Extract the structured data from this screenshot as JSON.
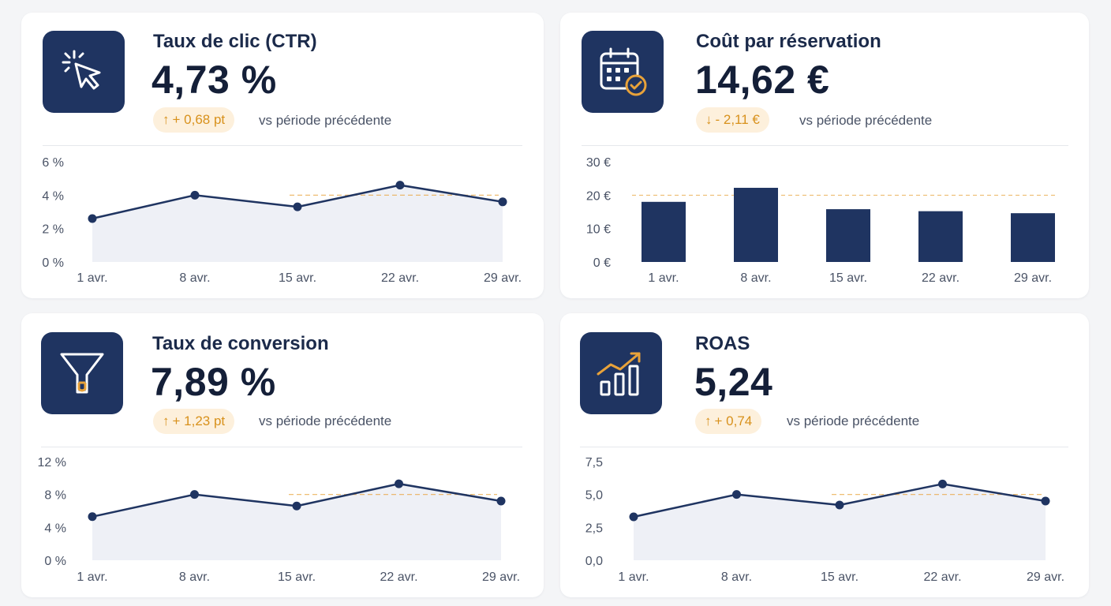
{
  "colors": {
    "navy": "#1f3461",
    "accent": "#e8a23a",
    "badge_bg": "#fdf0dc",
    "area_fill": "#eef0f6"
  },
  "cards": [
    {
      "icon": "cursor-click-icon",
      "title": "Taux de clic (CTR)",
      "value": "4,73 %",
      "delta_arrow": "↑",
      "delta": "+ 0,68 pt",
      "vs": "vs période précédente"
    },
    {
      "icon": "calendar-check-icon",
      "title": "Coût par réservation",
      "value": "14,62 €",
      "delta_arrow": "↓",
      "delta": "- 2,11 €",
      "vs": "vs période précédente"
    },
    {
      "icon": "funnel-icon",
      "title": "Taux de conversion",
      "value": "7,89 %",
      "delta_arrow": "↑",
      "delta": "+ 1,23 pt",
      "vs": "vs période précédente"
    },
    {
      "icon": "trend-bar-chart-icon",
      "title": "ROAS",
      "value": "5,24",
      "delta_arrow": "↑",
      "delta": "+ 0,74",
      "vs": "vs période précédente"
    }
  ],
  "chart_data": [
    {
      "type": "line",
      "categories": [
        "1 avr.",
        "8 avr.",
        "15 avr.",
        "22 avr.",
        "29 avr."
      ],
      "values": [
        2.6,
        4.0,
        3.3,
        4.6,
        3.6
      ],
      "ylim": [
        0,
        6
      ],
      "yticks": [
        "0 %",
        "2 %",
        "4 %",
        "6 %"
      ],
      "ytick_values": [
        0,
        2,
        4,
        6
      ],
      "reference_line": 4.0,
      "area": true,
      "grid": false
    },
    {
      "type": "bar",
      "categories": [
        "1 avr.",
        "8 avr.",
        "15 avr.",
        "22 avr.",
        "29 avr."
      ],
      "values": [
        18,
        22.2,
        15.8,
        15.2,
        14.6
      ],
      "ylim": [
        0,
        30
      ],
      "yticks": [
        "0 €",
        "10 €",
        "20 €",
        "30 €"
      ],
      "ytick_values": [
        0,
        10,
        20,
        30
      ],
      "reference_line": 20,
      "grid": false
    },
    {
      "type": "line",
      "categories": [
        "1 avr.",
        "8 avr.",
        "15 avr.",
        "22 avr.",
        "29 avr."
      ],
      "values": [
        5.3,
        8.0,
        6.6,
        9.3,
        7.2
      ],
      "ylim": [
        0,
        12
      ],
      "yticks": [
        "0 %",
        "4 %",
        "8 %",
        "12 %"
      ],
      "ytick_values": [
        0,
        4,
        8,
        12
      ],
      "reference_line": 8.0,
      "area": true,
      "grid": false
    },
    {
      "type": "line",
      "categories": [
        "1 avr.",
        "8 avr.",
        "15 avr.",
        "22 avr.",
        "29 avr."
      ],
      "values": [
        3.3,
        5.0,
        4.2,
        5.8,
        4.5
      ],
      "ylim": [
        0,
        7.5
      ],
      "yticks": [
        "0,0",
        "2,5",
        "5,0",
        "7,5"
      ],
      "ytick_values": [
        0,
        2.5,
        5,
        7.5
      ],
      "reference_line": 5.0,
      "area": true,
      "grid": false
    }
  ]
}
